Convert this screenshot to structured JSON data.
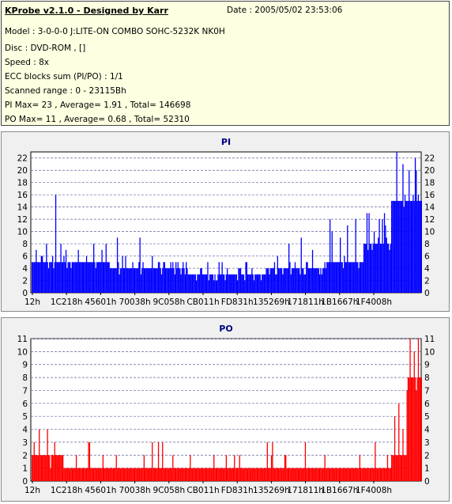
{
  "header": {
    "title": "KProbe v2.1.0 - Designed by Karr",
    "date": "Date : 2005/05/02 23:53:06",
    "lines": [
      "Model : 3-0-0-0 J:LITE-ON COMBO SOHC-5232K NK0H",
      "Disc : DVD-ROM ,  []",
      "Speed : 8x",
      "ECC blocks sum (PI/PO) : 1/1",
      "Scanned range : 0 - 23115Bh",
      "PI Max= 23 , Average= 1.91 , Total= 146698",
      "PO Max= 11 , Average= 0.68 , Total= 52310"
    ]
  },
  "chart_data": [
    {
      "type": "bar",
      "title": "PI",
      "color": "#0000ff",
      "ylim": [
        0,
        23
      ],
      "yticks": [
        0,
        2,
        4,
        6,
        8,
        10,
        12,
        14,
        16,
        18,
        20,
        22
      ],
      "xticks": [
        "12h",
        "1C218h",
        "45601h",
        "70038h",
        "9C058h",
        "CB011h",
        "FD831h",
        "135269h",
        "171811h",
        "1B1667h",
        "1F4008h"
      ],
      "grid": true,
      "segments": [
        {
          "from": 0.0,
          "to": 0.05,
          "base": 5,
          "spikes": [
            7,
            6,
            8
          ]
        },
        {
          "from": 0.05,
          "to": 0.1,
          "base": 5,
          "spikes": [
            16,
            8,
            7
          ]
        },
        {
          "from": 0.1,
          "to": 0.2,
          "base": 5,
          "spikes": [
            7,
            6,
            8,
            7
          ]
        },
        {
          "from": 0.2,
          "to": 0.28,
          "base": 4,
          "spikes": [
            9,
            6,
            5
          ]
        },
        {
          "from": 0.28,
          "to": 0.4,
          "base": 4,
          "spikes": [
            6,
            5,
            5
          ]
        },
        {
          "from": 0.4,
          "to": 0.6,
          "base": 3,
          "spikes": [
            5,
            4,
            5
          ]
        },
        {
          "from": 0.6,
          "to": 0.75,
          "base": 4,
          "spikes": [
            6,
            8,
            9,
            7
          ]
        },
        {
          "from": 0.75,
          "to": 0.85,
          "base": 5,
          "spikes": [
            10,
            9,
            11,
            12
          ]
        },
        {
          "from": 0.85,
          "to": 0.92,
          "base": 8,
          "spikes": [
            13,
            10,
            12,
            11
          ]
        },
        {
          "from": 0.92,
          "to": 1.0,
          "base": 15,
          "spikes": [
            23,
            21,
            20,
            22
          ]
        }
      ]
    },
    {
      "type": "bar",
      "title": "PO",
      "color": "#ff0000",
      "ylim": [
        0,
        11
      ],
      "yticks": [
        0,
        1,
        2,
        3,
        4,
        5,
        6,
        7,
        8,
        9,
        10,
        11
      ],
      "xticks": [
        "12h",
        "1C218h",
        "45601h",
        "70038h",
        "9C058h",
        "CB011h",
        "FD831h",
        "135269h",
        "171811h",
        "1B1667h",
        "1F4008h"
      ],
      "grid": true,
      "segments": [
        {
          "from": 0.0,
          "to": 0.08,
          "base": 2,
          "spikes": [
            3,
            4,
            3
          ]
        },
        {
          "from": 0.08,
          "to": 0.25,
          "base": 1,
          "spikes": [
            2,
            3,
            2,
            2
          ]
        },
        {
          "from": 0.25,
          "to": 0.4,
          "base": 1,
          "spikes": [
            2,
            3,
            2
          ]
        },
        {
          "from": 0.4,
          "to": 0.6,
          "base": 1,
          "spikes": [
            2,
            2
          ]
        },
        {
          "from": 0.6,
          "to": 0.8,
          "base": 1,
          "spikes": [
            2,
            3,
            2
          ]
        },
        {
          "from": 0.8,
          "to": 0.92,
          "base": 1,
          "spikes": [
            2,
            3
          ]
        },
        {
          "from": 0.92,
          "to": 0.96,
          "base": 2,
          "spikes": [
            5,
            6,
            4
          ]
        },
        {
          "from": 0.96,
          "to": 1.0,
          "base": 8,
          "spikes": [
            11,
            10,
            11
          ]
        }
      ]
    }
  ]
}
